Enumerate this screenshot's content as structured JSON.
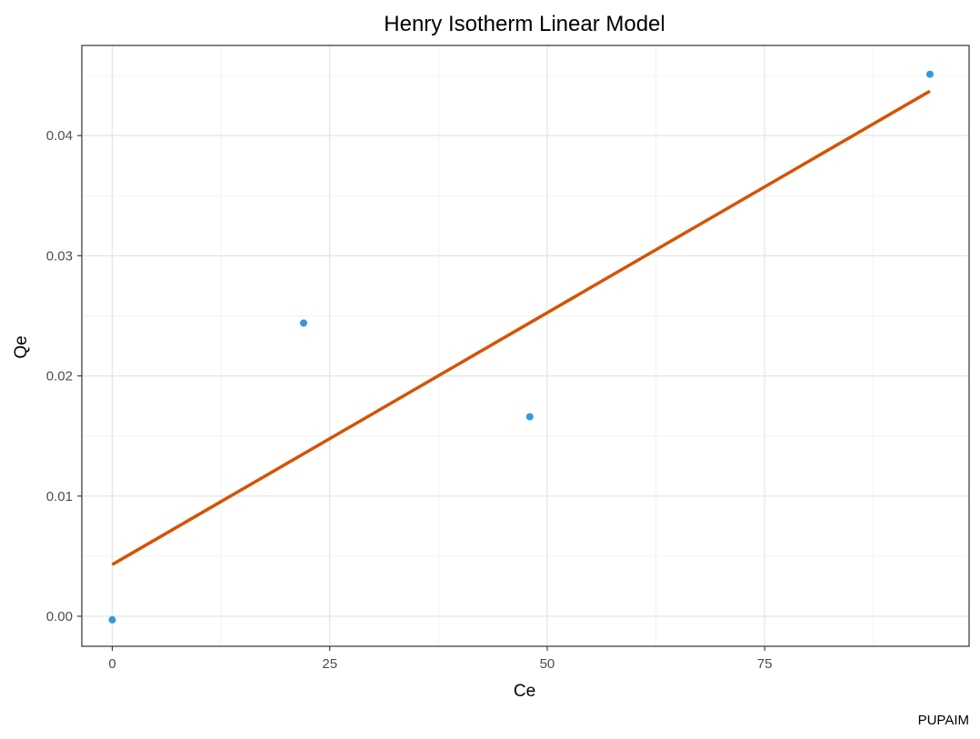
{
  "chart_data": {
    "type": "scatter",
    "title": "Henry Isotherm Linear Model",
    "xlabel": "Ce",
    "ylabel": "Qe",
    "caption": "PUPAIM",
    "xlim": [
      -3.5,
      98.5
    ],
    "ylim": [
      -0.0025,
      0.0475
    ],
    "x_ticks": [
      0,
      25,
      50,
      75
    ],
    "x_tick_labels": [
      "0",
      "25",
      "50",
      "75"
    ],
    "y_ticks": [
      0.0,
      0.01,
      0.02,
      0.03,
      0.04
    ],
    "y_tick_labels": [
      "0.00",
      "0.01",
      "0.02",
      "0.03",
      "0.04"
    ],
    "grid": true,
    "points": {
      "color": "#3498db",
      "x": [
        0,
        22,
        48,
        94
      ],
      "y": [
        -0.0003,
        0.0244,
        0.0166,
        0.0451
      ]
    },
    "fit_line": {
      "color": "#d35400",
      "x": [
        0,
        94
      ],
      "y": [
        0.0043,
        0.0437
      ]
    }
  }
}
